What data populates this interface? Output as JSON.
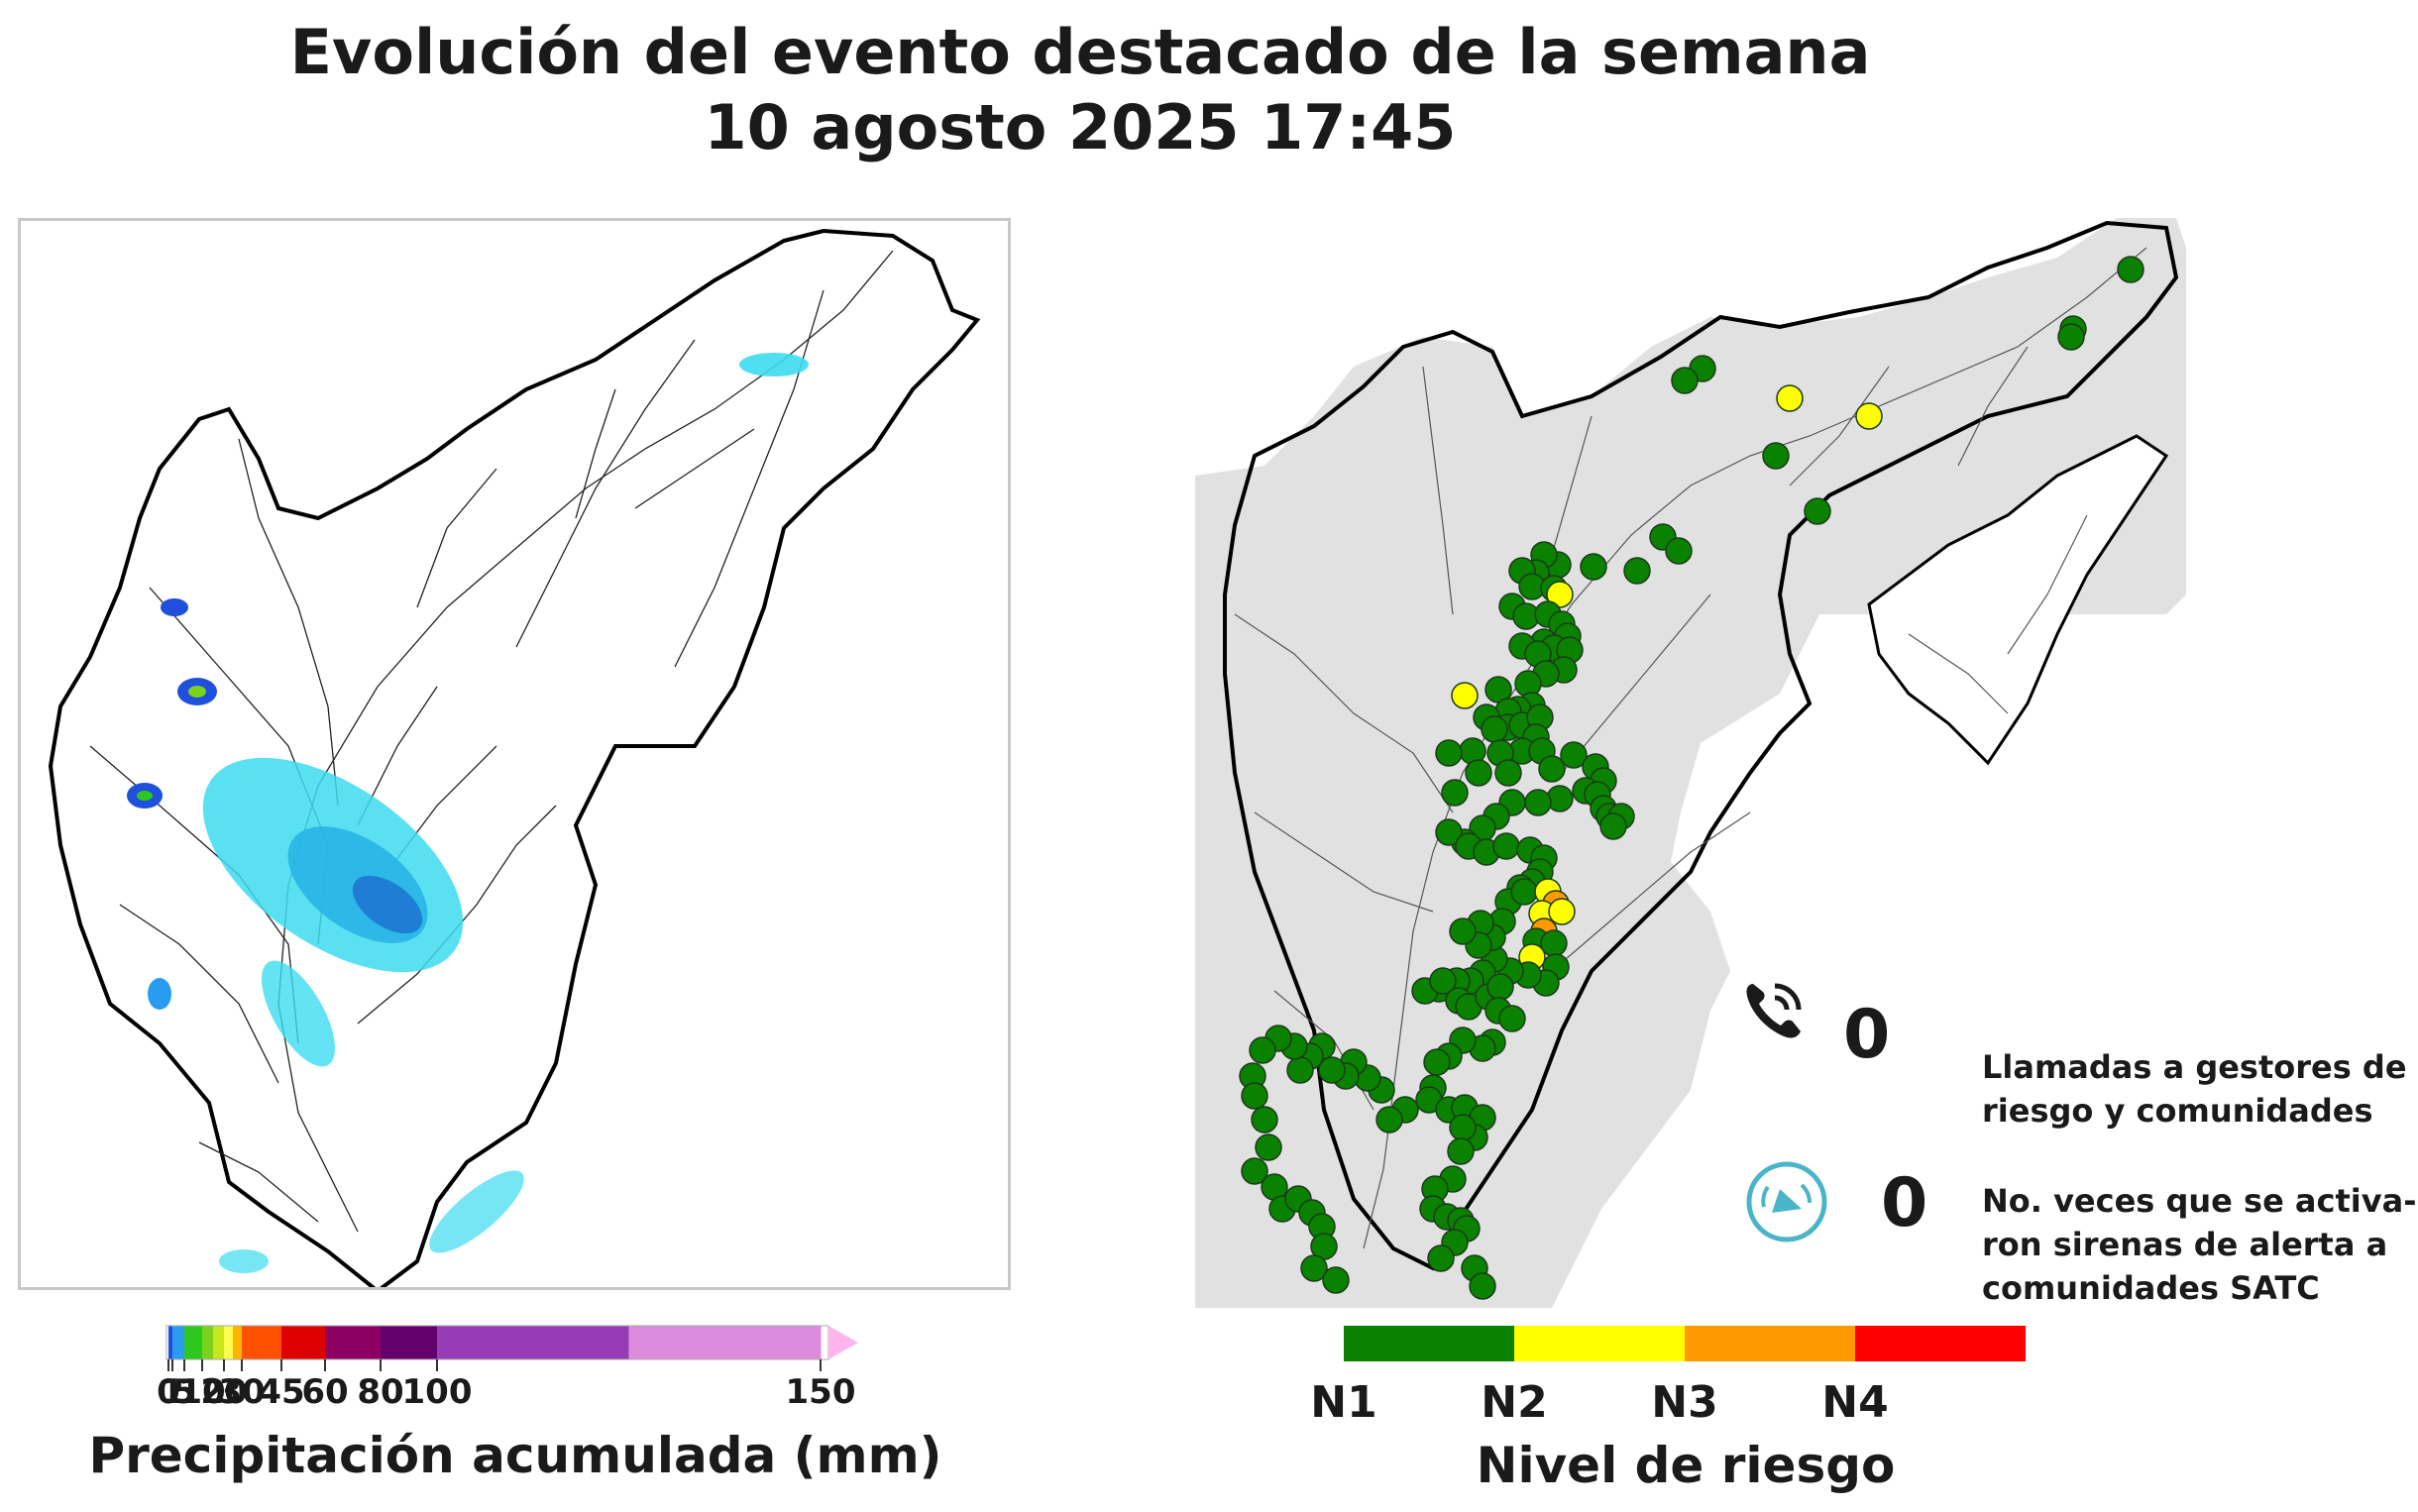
{
  "title": {
    "line1": "Evolución del evento destacado de la semana",
    "line2": "10 agosto 2025 17:45"
  },
  "precip_map": {
    "colorbar_label": "Precipitación acumulada (mm)",
    "ticks": [
      "0",
      "1",
      "5",
      "10",
      "20",
      "30",
      "45",
      "60",
      "80",
      "100",
      "150"
    ],
    "tick_values": [
      0,
      1,
      5,
      10,
      20,
      30,
      45,
      60,
      80,
      100,
      150
    ],
    "colors": [
      "#1e50dc",
      "#2a9cf0",
      "#2cc81e",
      "#7ad11e",
      "#c8e61e",
      "#ffff50",
      "#ffb400",
      "#ff5000",
      "#dc0000",
      "#8c0064",
      "#64006e",
      "#963cb4",
      "#dc8cdc",
      "#ffb4f0"
    ]
  },
  "risk_map": {
    "legend_label": "Nivel de riesgo",
    "levels": [
      "N1",
      "N2",
      "N3",
      "N4"
    ],
    "level_colors": [
      "#0a8200",
      "#ffff00",
      "#ff9900",
      "#ff0000"
    ],
    "calls": {
      "icon": "phone-icon",
      "value": "0",
      "label": "Llamadas a gestores de\nriesgo y comunidades"
    },
    "sirens": {
      "icon": "siren-icon",
      "value": "0",
      "label": "No. veces que se activa-\nron sirenas de alerta a\ncomunidades SATC"
    }
  }
}
